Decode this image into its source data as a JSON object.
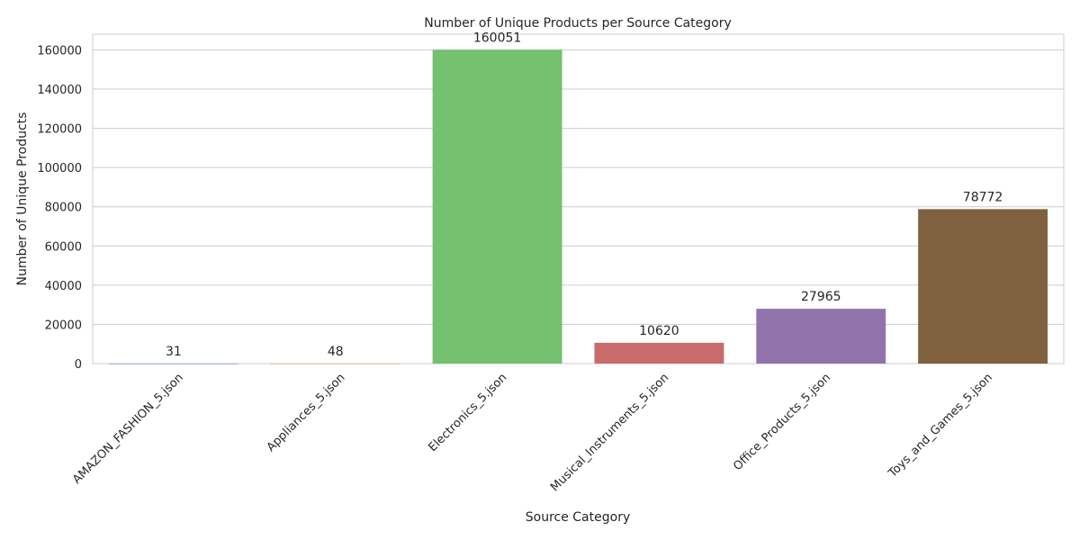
{
  "chart_data": {
    "type": "bar",
    "title": "Number of Unique Products per Source Category",
    "xlabel": "Source Category",
    "ylabel": "Number of Unique Products",
    "categories": [
      "AMAZON_FASHION_5.json",
      "Appliances_5.json",
      "Electronics_5.json",
      "Musical_Instruments_5.json",
      "Office_Products_5.json",
      "Toys_and_Games_5.json"
    ],
    "values": [
      31,
      48,
      160051,
      10620,
      27965,
      78772
    ],
    "data_labels": [
      "31",
      "48",
      "160051",
      "10620",
      "27965",
      "78772"
    ],
    "colors": [
      "#4c72b0",
      "#dd8452",
      "#74c170",
      "#c96b6b",
      "#9274ad",
      "#80613f"
    ],
    "ylim": [
      0,
      168000
    ],
    "yticks": [
      0,
      20000,
      40000,
      60000,
      80000,
      100000,
      120000,
      140000,
      160000
    ],
    "ytick_labels": [
      "0",
      "20000",
      "40000",
      "60000",
      "80000",
      "100000",
      "120000",
      "140000",
      "160000"
    ],
    "grid": "horizontal",
    "legend": "none"
  }
}
